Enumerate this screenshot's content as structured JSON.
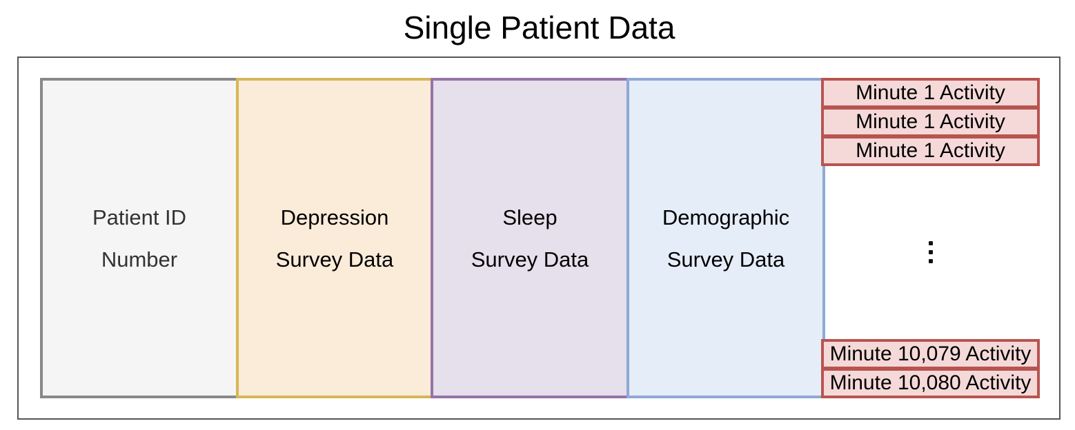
{
  "title": "Single Patient Data",
  "columns": [
    {
      "line1": "Patient ID",
      "line2": "Number",
      "fill": "#f5f5f5",
      "stroke": "#888888"
    },
    {
      "line1": "Depression",
      "line2": "Survey Data",
      "fill": "#fbebd9",
      "stroke": "#d6b656"
    },
    {
      "line1": "Sleep",
      "line2": "Survey Data",
      "fill": "#e6dfec",
      "stroke": "#9673a6"
    },
    {
      "line1": "Demographic",
      "line2": "Survey Data",
      "fill": "#e5edf9",
      "stroke": "#8fa9d4"
    }
  ],
  "activity": {
    "fill": "#f5d9d8",
    "stroke": "#b85450",
    "items": [
      "Minute 1 Activity",
      "Minute 1 Activity",
      "Minute 1 Activity",
      "Minute 10,079 Activity",
      "Minute 10,080 Activity"
    ],
    "ellipsis_icon": "vertical-ellipsis-icon"
  }
}
